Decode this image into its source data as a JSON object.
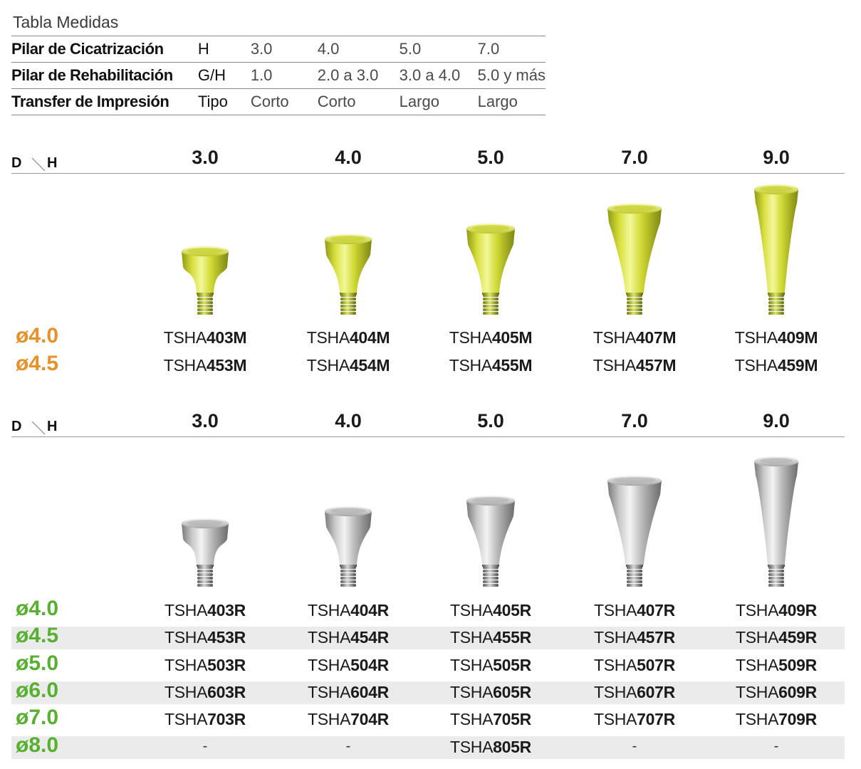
{
  "table": {
    "title": "Tabla Medidas",
    "rows": [
      {
        "label": "Pilar de Cicatrización",
        "unit": "H",
        "values": [
          "3.0",
          "4.0",
          "5.0",
          "7.0"
        ]
      },
      {
        "label": "Pilar de Rehabilitación",
        "unit": "G/H",
        "values": [
          "1.0",
          "2.0 a 3.0",
          "3.0 a 4.0",
          "5.0 y más"
        ]
      },
      {
        "label": "Transfer de Impresión",
        "unit": "Tipo",
        "values": [
          "Corto",
          "Corto",
          "Largo",
          "Largo"
        ]
      }
    ]
  },
  "section_m": {
    "d_label": "D",
    "h_label": "H",
    "heights": [
      "3.0",
      "4.0",
      "5.0",
      "7.0",
      "9.0"
    ],
    "color": "#e8912a",
    "rows": [
      {
        "diameter": "ø4.0",
        "codes": [
          {
            "prefix": "TSHA",
            "num": "403M"
          },
          {
            "prefix": "TSHA",
            "num": "404M"
          },
          {
            "prefix": "TSHA",
            "num": "405M"
          },
          {
            "prefix": "TSHA",
            "num": "407M"
          },
          {
            "prefix": "TSHA",
            "num": "409M"
          }
        ]
      },
      {
        "diameter": "ø4.5",
        "codes": [
          {
            "prefix": "TSHA",
            "num": "453M"
          },
          {
            "prefix": "TSHA",
            "num": "454M"
          },
          {
            "prefix": "TSHA",
            "num": "455M"
          },
          {
            "prefix": "TSHA",
            "num": "457M"
          },
          {
            "prefix": "TSHA",
            "num": "459M"
          }
        ]
      }
    ]
  },
  "section_r": {
    "d_label": "D",
    "h_label": "H",
    "heights": [
      "3.0",
      "4.0",
      "5.0",
      "7.0",
      "9.0"
    ],
    "color": "#57b030",
    "rows": [
      {
        "diameter": "ø4.0",
        "codes": [
          {
            "prefix": "TSHA",
            "num": "403R"
          },
          {
            "prefix": "TSHA",
            "num": "404R"
          },
          {
            "prefix": "TSHA",
            "num": "405R"
          },
          {
            "prefix": "TSHA",
            "num": "407R"
          },
          {
            "prefix": "TSHA",
            "num": "409R"
          }
        ]
      },
      {
        "diameter": "ø4.5",
        "codes": [
          {
            "prefix": "TSHA",
            "num": "453R"
          },
          {
            "prefix": "TSHA",
            "num": "454R"
          },
          {
            "prefix": "TSHA",
            "num": "455R"
          },
          {
            "prefix": "TSHA",
            "num": "457R"
          },
          {
            "prefix": "TSHA",
            "num": "459R"
          }
        ]
      },
      {
        "diameter": "ø5.0",
        "codes": [
          {
            "prefix": "TSHA",
            "num": "503R"
          },
          {
            "prefix": "TSHA",
            "num": "504R"
          },
          {
            "prefix": "TSHA",
            "num": "505R"
          },
          {
            "prefix": "TSHA",
            "num": "507R"
          },
          {
            "prefix": "TSHA",
            "num": "509R"
          }
        ]
      },
      {
        "diameter": "ø6.0",
        "codes": [
          {
            "prefix": "TSHA",
            "num": "603R"
          },
          {
            "prefix": "TSHA",
            "num": "604R"
          },
          {
            "prefix": "TSHA",
            "num": "605R"
          },
          {
            "prefix": "TSHA",
            "num": "607R"
          },
          {
            "prefix": "TSHA",
            "num": "609R"
          }
        ]
      },
      {
        "diameter": "ø7.0",
        "codes": [
          {
            "prefix": "TSHA",
            "num": "703R"
          },
          {
            "prefix": "TSHA",
            "num": "704R"
          },
          {
            "prefix": "TSHA",
            "num": "705R"
          },
          {
            "prefix": "TSHA",
            "num": "707R"
          },
          {
            "prefix": "TSHA",
            "num": "709R"
          }
        ]
      },
      {
        "diameter": "ø8.0",
        "codes": [
          {
            "dash": "-"
          },
          {
            "dash": "-"
          },
          {
            "prefix": "TSHA",
            "num": "805R"
          },
          {
            "dash": "-"
          },
          {
            "dash": "-"
          }
        ]
      }
    ]
  }
}
